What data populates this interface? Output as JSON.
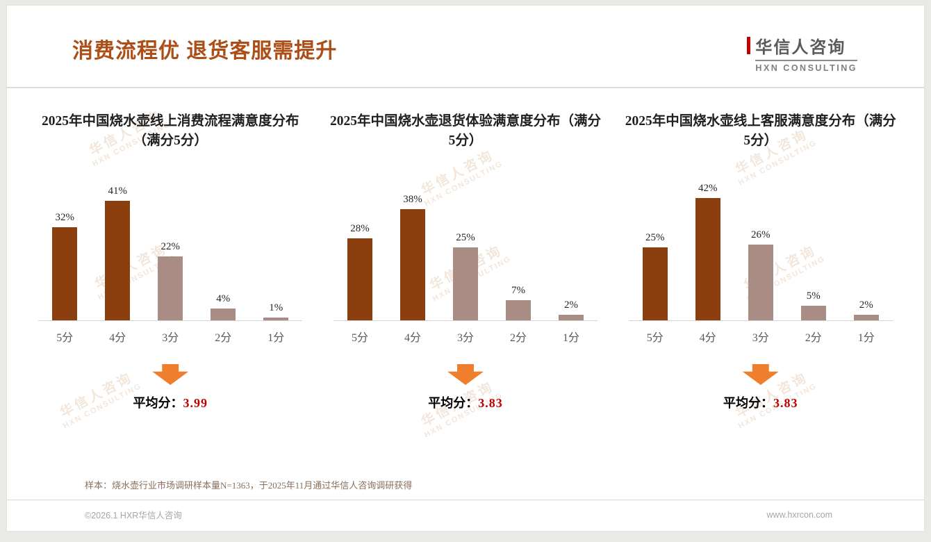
{
  "header": {
    "title": "消费流程优 退货客服需提升",
    "logo_cn": "华信人咨询",
    "logo_en": "HXN CONSULTING"
  },
  "watermark": {
    "cn": "华信人咨询",
    "en": "HXN CONSULTING"
  },
  "colors": {
    "title": "#AC4E17",
    "bar_dark": "#8B3E0E",
    "bar_light": "#A98C84",
    "arrow": "#EF7F2D",
    "average_value": "#C00000"
  },
  "chart_data": [
    {
      "type": "bar",
      "title": "2025年中国烧水壶线上消费流程满意度分布（满分5分）",
      "categories": [
        "5分",
        "4分",
        "3分",
        "2分",
        "1分"
      ],
      "values": [
        32,
        41,
        22,
        4,
        1
      ],
      "value_labels": [
        "32%",
        "41%",
        "22%",
        "4%",
        "1%"
      ],
      "bar_styles": [
        "dark",
        "dark",
        "light",
        "light",
        "light"
      ],
      "average_prefix": "平均分：",
      "average": "3.99",
      "ylim": [
        0,
        45
      ],
      "grid": false,
      "legend": "none"
    },
    {
      "type": "bar",
      "title": "2025年中国烧水壶退货体验满意度分布（满分5分）",
      "categories": [
        "5分",
        "4分",
        "3分",
        "2分",
        "1分"
      ],
      "values": [
        28,
        38,
        25,
        7,
        2
      ],
      "value_labels": [
        "28%",
        "38%",
        "25%",
        "7%",
        "2%"
      ],
      "bar_styles": [
        "dark",
        "dark",
        "light",
        "light",
        "light"
      ],
      "average_prefix": "平均分：",
      "average": "3.83",
      "ylim": [
        0,
        45
      ],
      "grid": false,
      "legend": "none"
    },
    {
      "type": "bar",
      "title": "2025年中国烧水壶线上客服满意度分布（满分5分）",
      "categories": [
        "5分",
        "4分",
        "3分",
        "2分",
        "1分"
      ],
      "values": [
        25,
        42,
        26,
        5,
        2
      ],
      "value_labels": [
        "25%",
        "42%",
        "26%",
        "5%",
        "2%"
      ],
      "bar_styles": [
        "dark",
        "dark",
        "light",
        "light",
        "light"
      ],
      "average_prefix": "平均分：",
      "average": "3.83",
      "ylim": [
        0,
        45
      ],
      "grid": false,
      "legend": "none"
    }
  ],
  "footnote": "样本：烧水壶行业市场调研样本量N=1363，于2025年11月通过华信人咨询调研获得",
  "footer": {
    "left": "©2026.1 HXR华信人咨询",
    "right": "www.hxrcon.com"
  }
}
